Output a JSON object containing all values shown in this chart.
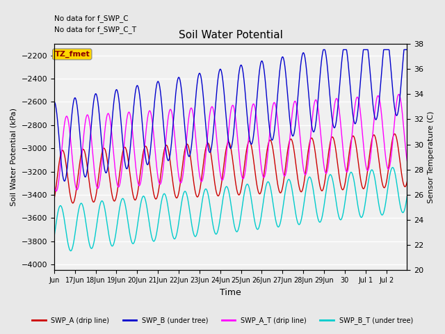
{
  "title": "Soil Water Potential",
  "ylabel_left": "Soil Water Potential (kPa)",
  "ylabel_right": "Sensor Temperature (C)",
  "xlabel": "Time",
  "ylim_left": [
    -4050,
    -2100
  ],
  "ylim_right": [
    20,
    38
  ],
  "yticks_left": [
    -4000,
    -3800,
    -3600,
    -3400,
    -3200,
    -3000,
    -2800,
    -2600,
    -2400,
    -2200
  ],
  "yticks_right": [
    20,
    22,
    24,
    26,
    28,
    30,
    32,
    34,
    36,
    38
  ],
  "text_no_data": [
    "No data for f_SWP_C",
    "No data for f_SWP_C_T"
  ],
  "annotation_box": "TZ_fmet",
  "annotation_box_color": "#FFD700",
  "annotation_box_text_color": "#8B0000",
  "colors": {
    "SWP_A": "#CC0000",
    "SWP_B": "#0000CC",
    "SWP_A_T": "#FF00FF",
    "SWP_B_T": "#00CCCC"
  },
  "legend_labels": [
    "SWP_A (drip line)",
    "SWP_B (under tree)",
    "SWP_A_T (drip line)",
    "SWP_B_T (under tree)"
  ],
  "num_days": 17,
  "num_points": 1700,
  "background_color": "#E8E8E8",
  "plot_bg_color": "#F0F0F0",
  "figsize": [
    6.4,
    4.8
  ],
  "dpi": 100
}
